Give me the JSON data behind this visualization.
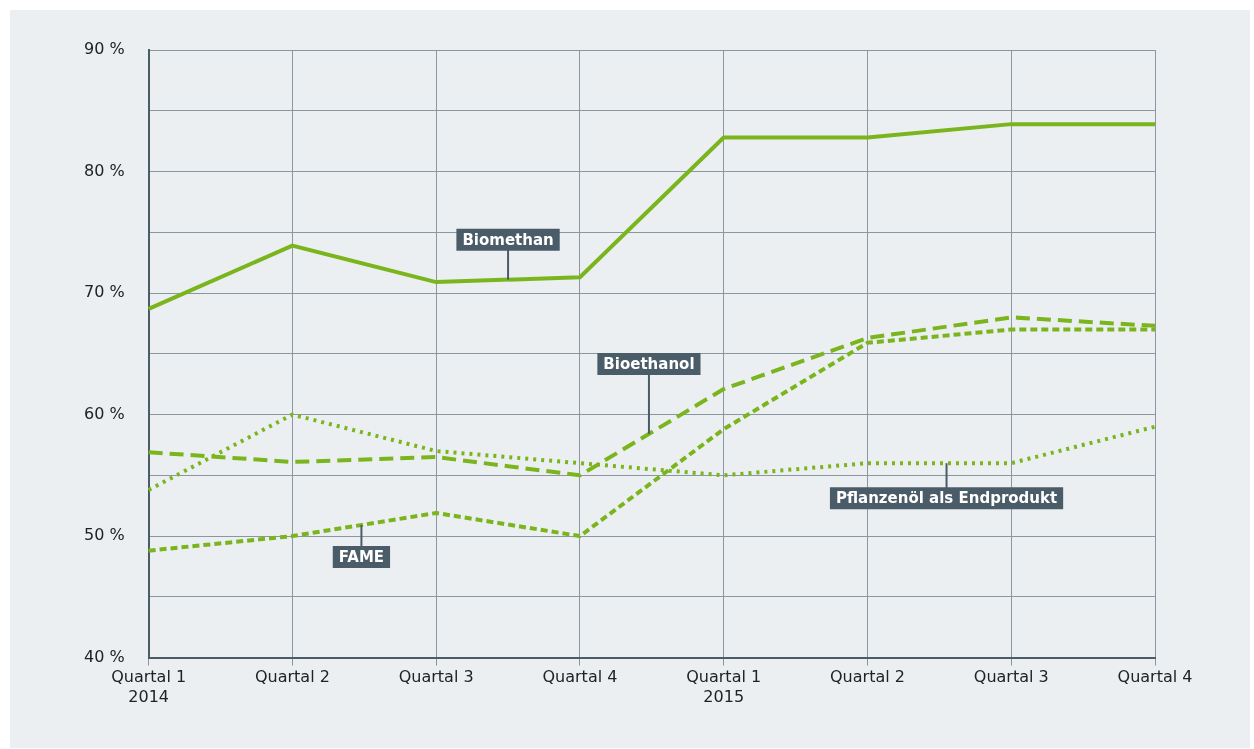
{
  "chart_data": {
    "type": "line",
    "categories": [
      "Quartal 1\n2014",
      "Quartal 2",
      "Quartal 3",
      "Quartal 4",
      "Quartal 1\n2015",
      "Quartal 2",
      "Quartal 3",
      "Quartal 4"
    ],
    "series": [
      {
        "name": "Biomethan",
        "color": "#7ab51d",
        "line_style": "solid",
        "values": [
          68.7,
          73.9,
          70.9,
          71.3,
          82.8,
          82.8,
          83.9,
          83.9
        ]
      },
      {
        "name": "Bioethanol",
        "color": "#7ab51d",
        "line_style": "dashed",
        "values": [
          56.9,
          56.1,
          56.5,
          55.0,
          62.1,
          66.3,
          68.0,
          67.3
        ]
      },
      {
        "name": "FAME",
        "color": "#7ab51d",
        "line_style": "dashed",
        "values": [
          48.8,
          50.0,
          51.9,
          50.0,
          58.8,
          65.9,
          67.0,
          67.0
        ]
      },
      {
        "name": "Pflanzenöl als Endprodukt",
        "color": "#7ab51d",
        "line_style": "dotted",
        "values": [
          53.8,
          60.0,
          57.0,
          56.0,
          55.0,
          56.0,
          56.0,
          59.0
        ]
      }
    ],
    "ylim": [
      40,
      90
    ],
    "yticks": [
      {
        "value": 40,
        "label": "40 %"
      },
      {
        "value": 45,
        "label": null
      },
      {
        "value": 50,
        "label": "50 %"
      },
      {
        "value": 55,
        "label": null
      },
      {
        "value": 60,
        "label": "60 %"
      },
      {
        "value": 65,
        "label": null
      },
      {
        "value": 70,
        "label": "70 %"
      },
      {
        "value": 75,
        "label": null
      },
      {
        "value": 80,
        "label": "80 %"
      },
      {
        "value": 85,
        "label": null
      },
      {
        "value": 90,
        "label": "90 %"
      }
    ],
    "grid": true,
    "legend": false,
    "marker": "none"
  }
}
